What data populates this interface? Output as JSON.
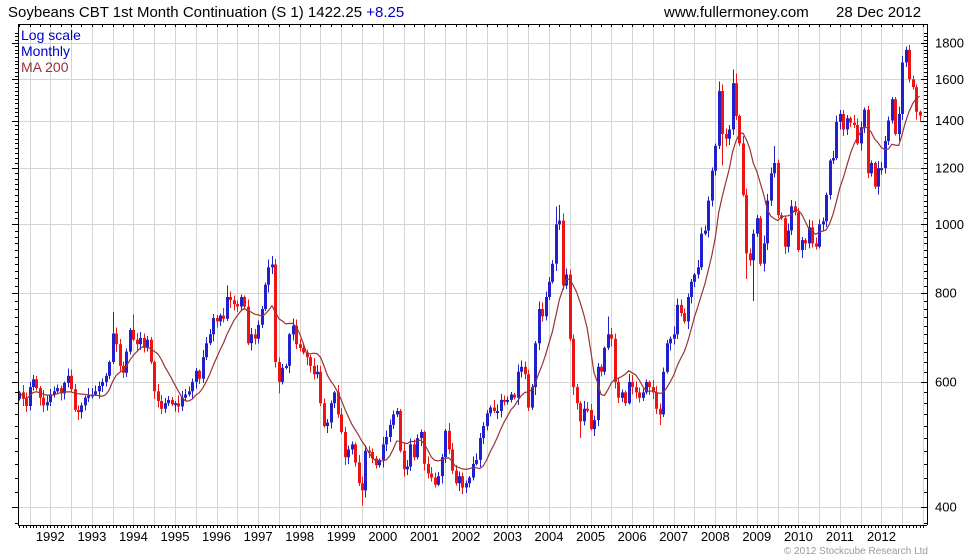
{
  "header": {
    "title_main": "Soybeans CBT 1st Month Continuation (S 1) 1422.25 ",
    "change": "+8.25",
    "website": "www.fullermoney.com",
    "date": "28 Dec 2012"
  },
  "legend": {
    "scale_label": "Log scale",
    "interval_label": "Monthly",
    "ma_label": "MA 200"
  },
  "footer": {
    "copyright": "© 2012 Stockcube Research Ltd"
  },
  "colors": {
    "up_candle": "#2020cf",
    "down_candle": "#ee1414",
    "ma_line": "#993333",
    "grid": "#d4d4d4",
    "axis": "#000000",
    "legend_blue": "#0000cc",
    "change_blue": "#0000cc",
    "copyright_gray": "#9a9a9a"
  },
  "chart_data": {
    "type": "candlestick",
    "title": "Soybeans CBT 1st Month Continuation (S 1)",
    "interval": "monthly",
    "y_scale": "log",
    "ylim": [
      377,
      1880
    ],
    "y_ticks": [
      400,
      600,
      800,
      1000,
      1200,
      1400,
      1600,
      1800
    ],
    "y_minor_tick_step": 20,
    "x_ticks": [
      1992,
      1993,
      1994,
      1995,
      1996,
      1997,
      1998,
      1999,
      2000,
      2001,
      2002,
      2003,
      2004,
      2005,
      2006,
      2007,
      2008,
      2009,
      2010,
      2011,
      2012
    ],
    "grid_interval_months": 6,
    "last_close": 1422.25,
    "last_change": 8.25,
    "ma_window_months": 10,
    "first_open": 568,
    "start": {
      "year": 1991,
      "month": 4
    },
    "end": {
      "year": 2012,
      "month": 12
    },
    "closes_by_year": [
      {
        "year": 1991,
        "closes": [
          580,
          568,
          555,
          590,
          605,
          588,
          570,
          556,
          562
        ]
      },
      {
        "year": 1992,
        "closes": [
          576,
          582,
          588,
          578,
          598,
          612,
          586,
          548,
          544,
          556,
          570,
          574
        ]
      },
      {
        "year": 1993,
        "closes": [
          576,
          582,
          592,
          600,
          612,
          640,
          702,
          678,
          632,
          618,
          662,
          710
        ]
      },
      {
        "year": 1994,
        "closes": [
          688,
          678,
          692,
          670,
          688,
          640,
          582,
          564,
          550,
          560,
          566,
          558
        ]
      },
      {
        "year": 1995,
        "closes": [
          560,
          554,
          570,
          576,
          582,
          600,
          622,
          606,
          650,
          680,
          700,
          738
        ]
      },
      {
        "year": 1996,
        "closes": [
          730,
          744,
          736,
          790,
          782,
          772,
          766,
          790,
          766,
          680,
          700,
          690
        ]
      },
      {
        "year": 1997,
        "closes": [
          722,
          760,
          822,
          870,
          878,
          640,
          600,
          628,
          632,
          700,
          720,
          678
        ]
      },
      {
        "year": 1998,
        "closes": [
          670,
          660,
          650,
          632,
          615,
          620,
          560,
          520,
          526,
          560,
          580,
          540
        ]
      },
      {
        "year": 1999,
        "closes": [
          510,
          470,
          482,
          490,
          462,
          432,
          422,
          480,
          478,
          468,
          458,
          466
        ]
      },
      {
        "year": 2000,
        "closes": [
          490,
          502,
          522,
          540,
          546,
          480,
          452,
          456,
          490,
          470,
          500,
          510
        ]
      },
      {
        "year": 2001,
        "closes": [
          460,
          446,
          440,
          430,
          442,
          470,
          512,
          482,
          450,
          432,
          442,
          426
        ]
      },
      {
        "year": 2002,
        "closes": [
          432,
          440,
          460,
          466,
          500,
          520,
          542,
          552,
          546,
          546,
          566,
          565
        ]
      },
      {
        "year": 2003,
        "closes": [
          566,
          576,
          570,
          620,
          630,
          615,
          552,
          590,
          680,
          760,
          742,
          790
        ]
      },
      {
        "year": 2004,
        "closes": [
          830,
          880,
          1000,
          1012,
          820,
          850,
          690,
          590,
          560,
          528,
          550,
          548
        ]
      },
      {
        "year": 2005,
        "closes": [
          515,
          530,
          630,
          620,
          670,
          700,
          690,
          600,
          570,
          580,
          560,
          600
        ]
      },
      {
        "year": 2006,
        "closes": [
          590,
          580,
          570,
          580,
          600,
          590,
          580,
          550,
          540,
          620,
          680,
          690
        ]
      },
      {
        "year": 2007,
        "closes": [
          700,
          770,
          750,
          730,
          790,
          830,
          850,
          870,
          970,
          980,
          1080,
          1190
        ]
      },
      {
        "year": 2008,
        "closes": [
          1290,
          1540,
          1340,
          1320,
          1360,
          1580,
          1420,
          1300,
          1100,
          910,
          890,
          970
        ]
      },
      {
        "year": 2009,
        "closes": [
          1020,
          880,
          940,
          1080,
          1180,
          1220,
          1030,
          1020,
          930,
          980,
          1060,
          1040
        ]
      },
      {
        "year": 2010,
        "closes": [
          920,
          950,
          940,
          990,
          940,
          930,
          1000,
          1010,
          1100,
          1230,
          1240,
          1394
        ]
      },
      {
        "year": 2011,
        "closes": [
          1430,
          1360,
          1410,
          1390,
          1380,
          1300,
          1370,
          1450,
          1180,
          1220,
          1130,
          1200
        ]
      },
      {
        "year": 2012,
        "closes": [
          1200,
          1310,
          1400,
          1500,
          1340,
          1430,
          1690,
          1760,
          1600,
          1560,
          1440,
          1422.25
        ]
      }
    ],
    "wick_overrides": {
      "1993-07": {
        "high": 752
      },
      "1994-01": {
        "high": 746
      },
      "1996-04": {
        "high": 820
      },
      "1997-05": {
        "high": 902
      },
      "1997-07": {
        "low": 578
      },
      "1999-07": {
        "low": 402
      },
      "2004-03": {
        "high": 1060
      },
      "2004-04": {
        "high": 1064
      },
      "2004-10": {
        "low": 500
      },
      "2005-06": {
        "high": 742
      },
      "2006-09": {
        "low": 522
      },
      "2008-02": {
        "high": 1588
      },
      "2008-03": {
        "low": 1210
      },
      "2008-06": {
        "high": 1652
      },
      "2008-07": {
        "high": 1630
      },
      "2008-10": {
        "low": 838
      },
      "2008-12": {
        "low": 780
      },
      "2009-06": {
        "high": 1290
      },
      "2011-01": {
        "high": 1448
      },
      "2011-08": {
        "high": 1460
      },
      "2012-04": {
        "high": 1510
      },
      "2012-08": {
        "high": 1780
      },
      "2012-09": {
        "high": 1789
      }
    },
    "wick_base_pct": 0.005,
    "wick_var_pct": 0.022
  }
}
